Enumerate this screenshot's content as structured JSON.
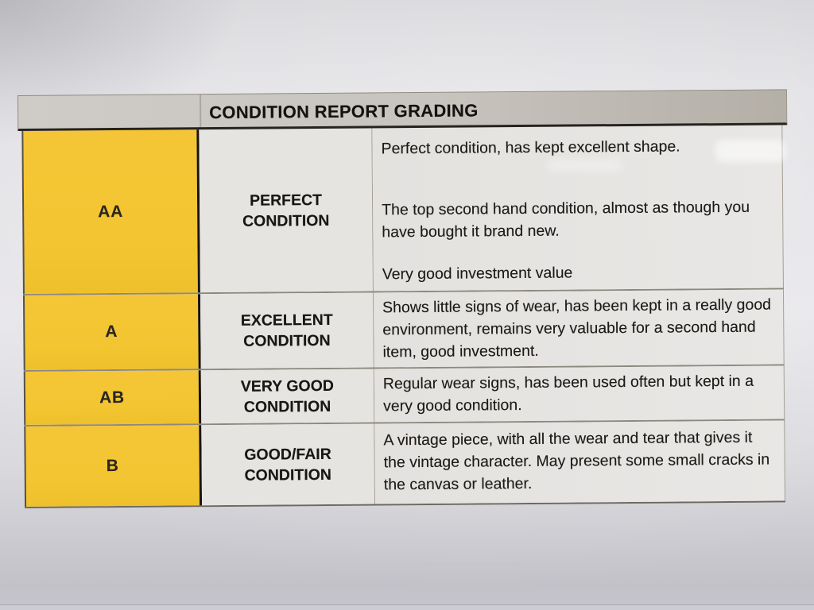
{
  "colors": {
    "grade_yellow": "#f4c637",
    "header_gray": "#c7c3bd",
    "cell_gray": "#e6e4e1",
    "paper": "#e2e1e5",
    "ink": "#211e1a"
  },
  "table": {
    "header": {
      "title": "CONDITION REPORT GRADING"
    },
    "rows": [
      {
        "grade": "AA",
        "name": "PERFECT CONDITION",
        "name_line1": "PERFECT",
        "name_line2": "CONDITION",
        "paragraphs": [
          "Perfect condition, has kept excellent shape.",
          "The top second hand condition, almost as though you have bought it brand new.",
          "Very good investment value"
        ]
      },
      {
        "grade": "A",
        "name": "EXCELLENT CONDITION",
        "name_line1": "EXCELLENT",
        "name_line2": "CONDITION",
        "paragraphs": [
          "Shows little signs of wear, has been kept in a really good environment, remains very valuable for a second hand item, good investment."
        ]
      },
      {
        "grade": "AB",
        "name": "VERY GOOD CONDITION",
        "name_line1": "VERY GOOD",
        "name_line2": "CONDITION",
        "paragraphs": [
          "Regular wear signs, has been used often but kept in a very good condition."
        ]
      },
      {
        "grade": "B",
        "name": "GOOD/FAIR CONDITION",
        "name_line1": "GOOD/FAIR",
        "name_line2": "CONDITION",
        "paragraphs": [
          "A vintage piece, with all the wear and tear that gives it the vintage character. May present some small cracks in the canvas or leather."
        ]
      }
    ]
  }
}
